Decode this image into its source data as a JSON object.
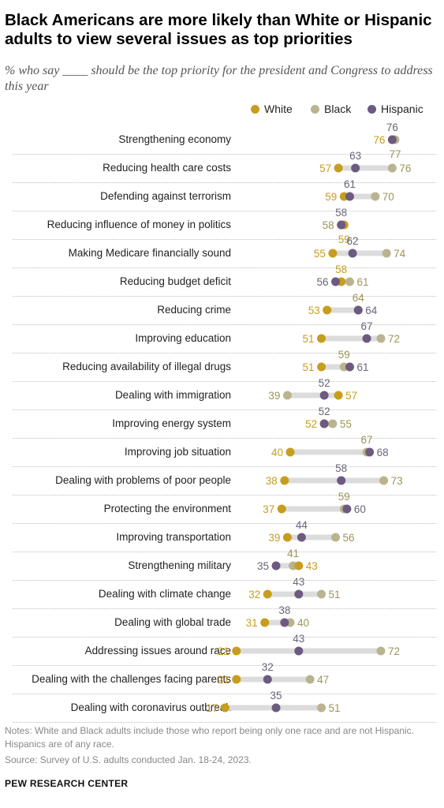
{
  "header": {
    "title": "Black Americans are more likely than White or Hispanic adults to view several issues as top priorities",
    "subtitle": "% who say ____ should be the top priority for the president and Congress to address this year"
  },
  "legend": {
    "white": "White",
    "black": "Black",
    "hispanic": "Hispanic"
  },
  "colors": {
    "white": "#c79d1e",
    "black": "#b9b48f",
    "hispanic": "#6c5a80",
    "white_text": "#c79d1e",
    "black_text": "#9d9458",
    "hispanic_text": "#6a6478",
    "connector": "#dcdcdc"
  },
  "chart_data": {
    "type": "dot",
    "categories": [
      "Strengthening economy",
      "Reducing health care costs",
      "Defending against terrorism",
      "Reducing influence of money in politics",
      "Making Medicare financially sound",
      "Reducing budget deficit",
      "Reducing crime",
      "Improving education",
      "Reducing availability of illegal drugs",
      "Dealing with immigration",
      "Improving energy system",
      "Improving job situation",
      "Dealing with problems of poor people",
      "Protecting the environment",
      "Improving transportation",
      "Strengthening military",
      "Dealing with climate change",
      "Dealing with global trade",
      "Addressing issues around race",
      "Dealing with the challenges facing parents",
      "Dealing with coronavirus outbreak"
    ],
    "series": [
      {
        "name": "White",
        "key": "white",
        "values": [
          76,
          57,
          59,
          59,
          55,
          58,
          53,
          51,
          51,
          57,
          52,
          40,
          38,
          37,
          39,
          43,
          32,
          31,
          21,
          21,
          17
        ]
      },
      {
        "name": "Black",
        "key": "black",
        "values": [
          77,
          76,
          70,
          58,
          74,
          61,
          64,
          72,
          59,
          39,
          55,
          67,
          73,
          59,
          56,
          41,
          51,
          40,
          72,
          47,
          51
        ]
      },
      {
        "name": "Hispanic",
        "key": "hispanic",
        "values": [
          76,
          63,
          61,
          58,
          62,
          56,
          64,
          67,
          61,
          52,
          52,
          68,
          58,
          60,
          44,
          35,
          43,
          38,
          43,
          32,
          35
        ]
      }
    ],
    "xlim": [
      0,
      100
    ],
    "grid": false,
    "legend_position": "top-right"
  },
  "footer": {
    "notes": "Notes: White and Black adults include those who report being only one race and are not Hispanic. Hispanics are of any race.",
    "source": "Source: Survey of U.S. adults conducted Jan. 18-24, 2023.",
    "brand": "PEW RESEARCH CENTER"
  }
}
